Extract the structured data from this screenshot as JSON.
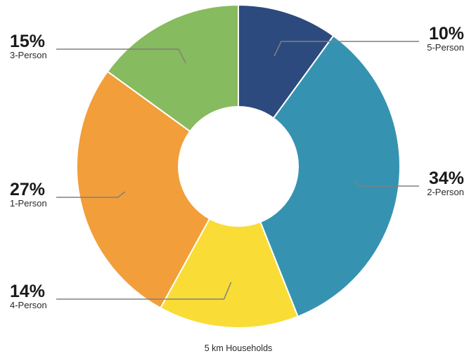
{
  "chart_data": {
    "type": "pie",
    "donut": true,
    "caption": "5 km Households",
    "slices": [
      {
        "label": "5-Person",
        "value": 10,
        "display": "10%",
        "color": "#2d4a7e"
      },
      {
        "label": "2-Person",
        "value": 34,
        "display": "34%",
        "color": "#3593b1"
      },
      {
        "label": "4-Person",
        "value": 14,
        "display": "14%",
        "color": "#f9dc36"
      },
      {
        "label": "1-Person",
        "value": 27,
        "display": "27%",
        "color": "#f29e3a"
      },
      {
        "label": "3-Person",
        "value": 15,
        "display": "15%",
        "color": "#87bb5f"
      }
    ]
  }
}
